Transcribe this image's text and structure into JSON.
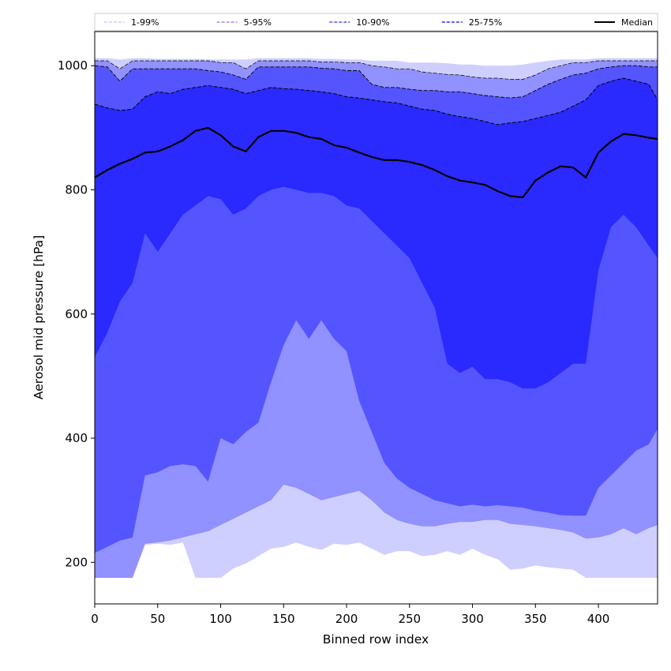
{
  "chart_data": {
    "type": "area",
    "title": "",
    "xlabel": "Binned row index",
    "ylabel": "Aerosol mid pressure [hPa]",
    "xlim": [
      0,
      447
    ],
    "ylim": [
      1055,
      133
    ],
    "y_inverted": true,
    "x_ticks": [
      0,
      50,
      100,
      150,
      200,
      250,
      300,
      350,
      400
    ],
    "y_ticks": [
      200,
      400,
      600,
      800,
      1000
    ],
    "legend_position": "top",
    "colors": {
      "p1_99": "#cfcfff",
      "p5_95": "#9191ff",
      "p10_90": "#5555ff",
      "p25_75": "#2a2aff",
      "median": "#000000",
      "edge": "#000000"
    },
    "legend": [
      {
        "label": "1-99%",
        "key": "p1_99"
      },
      {
        "label": "5-95%",
        "key": "p5_95"
      },
      {
        "label": "10-90%",
        "key": "p10_90"
      },
      {
        "label": "25-75%",
        "key": "p25_75"
      },
      {
        "label": "Median",
        "key": "median"
      }
    ],
    "x": [
      0,
      10,
      20,
      30,
      40,
      50,
      60,
      70,
      80,
      90,
      100,
      110,
      120,
      130,
      140,
      150,
      160,
      170,
      180,
      190,
      200,
      210,
      220,
      230,
      240,
      250,
      260,
      270,
      280,
      290,
      300,
      310,
      320,
      330,
      340,
      350,
      360,
      370,
      380,
      390,
      400,
      410,
      420,
      430,
      440,
      447
    ],
    "series": [
      {
        "name": "p1",
        "values": [
          175,
          175,
          175,
          175,
          228,
          230,
          228,
          232,
          175,
          175,
          175,
          190,
          198,
          210,
          222,
          225,
          232,
          225,
          220,
          230,
          228,
          232,
          222,
          212,
          218,
          218,
          210,
          212,
          218,
          212,
          222,
          212,
          205,
          188,
          190,
          195,
          192,
          190,
          188,
          175,
          175,
          175,
          175,
          175,
          175,
          175
        ]
      },
      {
        "name": "p5",
        "values": [
          175,
          175,
          175,
          175,
          230,
          232,
          235,
          240,
          245,
          250,
          260,
          270,
          280,
          290,
          300,
          325,
          320,
          310,
          300,
          305,
          310,
          315,
          300,
          280,
          268,
          262,
          258,
          258,
          262,
          265,
          265,
          268,
          268,
          262,
          260,
          258,
          255,
          252,
          248,
          238,
          240,
          245,
          255,
          245,
          255,
          260
        ]
      },
      {
        "name": "p10",
        "values": [
          215,
          225,
          235,
          240,
          340,
          345,
          355,
          358,
          355,
          330,
          400,
          390,
          410,
          425,
          490,
          550,
          590,
          560,
          590,
          560,
          540,
          460,
          410,
          360,
          335,
          320,
          310,
          300,
          295,
          290,
          293,
          290,
          292,
          290,
          288,
          283,
          280,
          276,
          275,
          275,
          320,
          340,
          360,
          380,
          390,
          415
        ]
      },
      {
        "name": "p25",
        "values": [
          530,
          570,
          620,
          650,
          730,
          700,
          730,
          760,
          775,
          790,
          785,
          760,
          770,
          790,
          800,
          805,
          800,
          795,
          795,
          790,
          775,
          770,
          750,
          730,
          710,
          690,
          650,
          610,
          520,
          505,
          515,
          495,
          495,
          490,
          480,
          480,
          490,
          505,
          520,
          520,
          670,
          740,
          760,
          740,
          710,
          690
        ]
      },
      {
        "name": "median",
        "values": [
          820,
          832,
          842,
          850,
          860,
          862,
          870,
          880,
          895,
          900,
          888,
          870,
          862,
          885,
          895,
          895,
          892,
          885,
          882,
          872,
          868,
          860,
          853,
          848,
          848,
          845,
          840,
          832,
          822,
          815,
          812,
          808,
          798,
          790,
          788,
          815,
          828,
          838,
          836,
          820,
          860,
          878,
          890,
          888,
          884,
          882
        ]
      },
      {
        "name": "p75",
        "values": [
          938,
          932,
          928,
          930,
          950,
          958,
          955,
          962,
          965,
          968,
          965,
          962,
          955,
          960,
          965,
          963,
          962,
          960,
          958,
          955,
          950,
          948,
          945,
          942,
          940,
          935,
          930,
          928,
          922,
          918,
          915,
          910,
          905,
          908,
          910,
          915,
          920,
          925,
          935,
          945,
          968,
          975,
          980,
          975,
          970,
          945
        ]
      },
      {
        "name": "p90",
        "values": [
          1000,
          998,
          975,
          995,
          995,
          995,
          995,
          995,
          995,
          992,
          990,
          985,
          978,
          998,
          998,
          998,
          998,
          998,
          996,
          995,
          992,
          992,
          970,
          965,
          965,
          962,
          960,
          960,
          958,
          958,
          955,
          952,
          950,
          948,
          950,
          960,
          970,
          978,
          985,
          988,
          995,
          998,
          1000,
          1000,
          998,
          998
        ]
      },
      {
        "name": "p95",
        "values": [
          1008,
          1008,
          995,
          1008,
          1008,
          1008,
          1008,
          1008,
          1008,
          1008,
          1005,
          1005,
          995,
          1008,
          1008,
          1008,
          1008,
          1008,
          1006,
          1006,
          1005,
          1005,
          1000,
          998,
          995,
          995,
          990,
          988,
          986,
          985,
          982,
          980,
          980,
          978,
          978,
          985,
          995,
          1000,
          1005,
          1005,
          1008,
          1008,
          1008,
          1008,
          1008,
          1008
        ]
      },
      {
        "name": "p99",
        "values": [
          1012,
          1012,
          1010,
          1012,
          1012,
          1011,
          1011,
          1011,
          1011,
          1010,
          1010,
          1010,
          1010,
          1012,
          1012,
          1012,
          1012,
          1012,
          1011,
          1011,
          1010,
          1010,
          1008,
          1008,
          1008,
          1005,
          1005,
          1005,
          1004,
          1002,
          1002,
          1000,
          1000,
          1000,
          1002,
          1005,
          1008,
          1010,
          1010,
          1010,
          1012,
          1012,
          1012,
          1012,
          1012,
          1012
        ]
      }
    ]
  }
}
